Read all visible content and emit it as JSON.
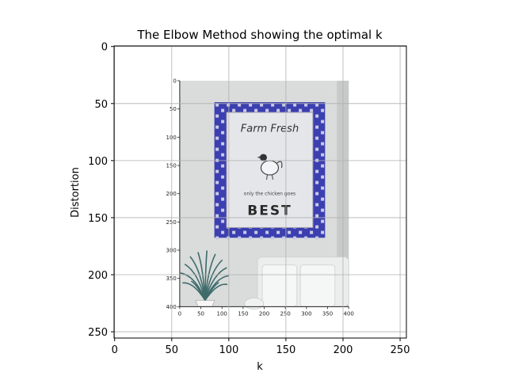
{
  "chart_data": {
    "type": "image",
    "title": "The Elbow Method showing the optimal k",
    "xlabel": "k",
    "ylabel": "Distortion",
    "xlim": [
      -0.5,
      255.5
    ],
    "ylim": [
      255.5,
      -0.5
    ],
    "x_ticks": [
      0,
      50,
      100,
      150,
      200,
      250
    ],
    "y_ticks": [
      0,
      50,
      100,
      150,
      200,
      250
    ],
    "grid": true,
    "embedded_image": {
      "description": "photo of a framed sign on a wall with a potted plant and white sofa",
      "extent_data": {
        "x": [
          57,
          205
        ],
        "y": [
          30,
          228
        ]
      },
      "inner_x_ticks": [
        0,
        50,
        100,
        150,
        200,
        250,
        300,
        350,
        400
      ],
      "inner_y_ticks": [
        0,
        50,
        100,
        150,
        200,
        250,
        300,
        350,
        400
      ],
      "sign_text": [
        "Farm Fresh",
        "only the chicken goes",
        "BEST"
      ],
      "colors": {
        "wall": "#d9dcdb",
        "frame_blue": "#3b3fb0",
        "sign_panel": "#e4e6ea",
        "plant": "#3f6b6b",
        "sofa": "#eceeee"
      }
    }
  }
}
